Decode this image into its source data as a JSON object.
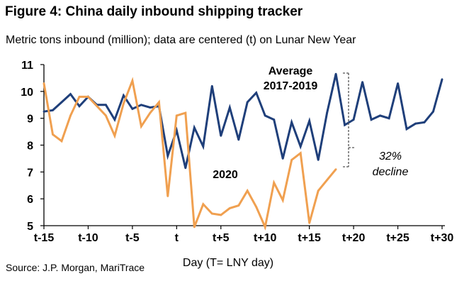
{
  "title": "Figure 4: China daily inbound shipping tracker",
  "subtitle": "Metric tons inbound (million); data are centered (t) on Lunar New Year",
  "source": "Source: J.P. Morgan, MariTrace",
  "colors": {
    "average": "#1f3f7a",
    "y2020": "#f0a050",
    "axis": "#000000",
    "bracket": "#555555"
  },
  "chart_data": {
    "type": "line",
    "xlabel": "Day (T= LNY day)",
    "ylabel": "",
    "xlim": [
      -15,
      30
    ],
    "ylim": [
      5,
      11
    ],
    "yticks": [
      5,
      6,
      7,
      8,
      9,
      10,
      11
    ],
    "xticks": [
      {
        "x": -15,
        "label": "t-15"
      },
      {
        "x": -10,
        "label": "t-10"
      },
      {
        "x": -5,
        "label": "t-5"
      },
      {
        "x": 0,
        "label": "t"
      },
      {
        "x": 5,
        "label": "t+5"
      },
      {
        "x": 10,
        "label": "t+10"
      },
      {
        "x": 15,
        "label": "t+15"
      },
      {
        "x": 20,
        "label": "t+20"
      },
      {
        "x": 25,
        "label": "t+25"
      },
      {
        "x": 30,
        "label": "t+30"
      }
    ],
    "grid": false,
    "series": [
      {
        "name": "Average 2017-2019",
        "label_lines": [
          "Average",
          "2017-2019"
        ],
        "x": [
          -15,
          -14,
          -13,
          -12,
          -11,
          -10,
          -9,
          -8,
          -7,
          -6,
          -5,
          -4,
          -3,
          -2,
          -1,
          0,
          1,
          2,
          3,
          4,
          5,
          6,
          7,
          8,
          9,
          10,
          11,
          12,
          13,
          14,
          15,
          16,
          17,
          18,
          19,
          20,
          21,
          22,
          23,
          24,
          25,
          26,
          27,
          28,
          29,
          30
        ],
        "values": [
          9.25,
          9.3,
          9.6,
          9.9,
          9.45,
          9.8,
          9.5,
          9.5,
          8.95,
          9.85,
          9.35,
          9.5,
          9.4,
          9.45,
          7.6,
          8.55,
          7.15,
          8.65,
          7.95,
          10.2,
          8.35,
          9.4,
          8.2,
          9.6,
          9.95,
          9.1,
          8.95,
          7.5,
          8.85,
          7.95,
          8.9,
          7.45,
          9.2,
          10.65,
          8.75,
          8.95,
          10.35,
          8.95,
          9.1,
          9.0,
          10.3,
          8.6,
          8.8,
          8.85,
          9.25,
          10.45
        ]
      },
      {
        "name": "2020",
        "label_lines": [
          "2020"
        ],
        "x": [
          -15,
          -14,
          -13,
          -12,
          -11,
          -10,
          -9,
          -8,
          -7,
          -6,
          -5,
          -4,
          -3,
          -2,
          -1,
          0,
          1,
          2,
          3,
          4,
          5,
          6,
          7,
          8,
          9,
          10,
          11,
          12,
          13,
          14,
          15,
          16,
          17,
          18
        ],
        "values": [
          10.3,
          8.4,
          8.15,
          9.1,
          9.8,
          9.8,
          9.45,
          9.1,
          8.35,
          9.55,
          10.4,
          8.7,
          9.2,
          9.6,
          6.1,
          9.1,
          9.2,
          4.95,
          5.8,
          5.45,
          5.4,
          5.65,
          5.75,
          6.3,
          5.7,
          4.95,
          6.6,
          5.95,
          7.45,
          7.7,
          5.1,
          6.3,
          6.7,
          7.1
        ]
      }
    ],
    "annotations": {
      "decline_lines": [
        "32%",
        "decline"
      ]
    }
  }
}
